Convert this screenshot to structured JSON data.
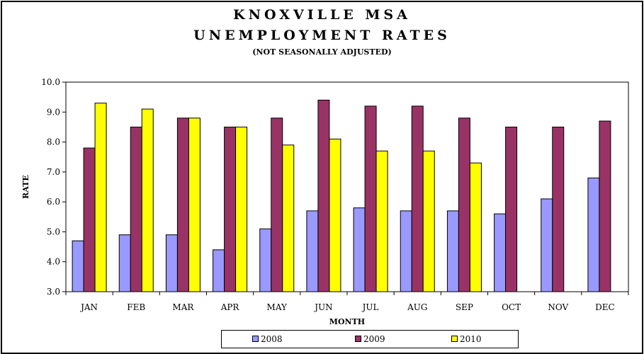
{
  "chart_data": {
    "type": "bar",
    "title_line1": "KNOXVILLE MSA",
    "title_line2": "UNEMPLOYMENT RATES",
    "subtitle": "(NOT SEASONALLY ADJUSTED)",
    "xlabel": "MONTH",
    "ylabel": "RATE",
    "ylim": [
      3.0,
      10.0
    ],
    "yticks": [
      "3.0",
      "4.0",
      "5.0",
      "6.0",
      "7.0",
      "8.0",
      "9.0",
      "10.0"
    ],
    "grid": false,
    "legend_position": "bottom",
    "categories": [
      "JAN",
      "FEB",
      "MAR",
      "APR",
      "MAY",
      "JUN",
      "JUL",
      "AUG",
      "SEP",
      "OCT",
      "NOV",
      "DEC"
    ],
    "series": [
      {
        "name": "2008",
        "color": "#9999ff",
        "values": [
          4.7,
          4.9,
          4.9,
          4.4,
          5.1,
          5.7,
          5.8,
          5.7,
          5.7,
          5.6,
          6.1,
          6.8
        ]
      },
      {
        "name": "2009",
        "color": "#993366",
        "values": [
          7.8,
          8.5,
          8.8,
          8.5,
          8.8,
          9.4,
          9.2,
          9.2,
          8.8,
          8.5,
          8.5,
          8.7
        ]
      },
      {
        "name": "2010",
        "color": "#ffff00",
        "values": [
          9.3,
          9.1,
          8.8,
          8.5,
          7.9,
          8.1,
          7.7,
          7.7,
          7.3,
          null,
          null,
          null
        ]
      }
    ]
  }
}
